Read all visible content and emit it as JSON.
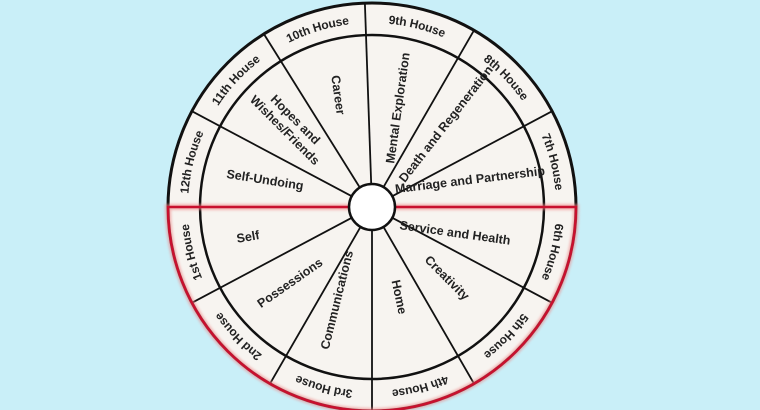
{
  "colors": {
    "background": "#c9eff8",
    "wheel_fill": "#f7f4f0",
    "line": "#111111",
    "highlight": "#c8102e"
  },
  "houses": [
    {
      "house": "1st House",
      "meaning": "Self"
    },
    {
      "house": "2nd House",
      "meaning": "Possessions"
    },
    {
      "house": "3rd House",
      "meaning": "Communications"
    },
    {
      "house": "4th House",
      "meaning": "Home"
    },
    {
      "house": "5th House",
      "meaning": "Creativity"
    },
    {
      "house": "6th House",
      "meaning": "Service and Health"
    },
    {
      "house": "7th House",
      "meaning": "Marriage and Partnership"
    },
    {
      "house": "8th House",
      "meaning": "Death and Regeneration"
    },
    {
      "house": "9th House",
      "meaning": "Mental Exploration"
    },
    {
      "house": "10th House",
      "meaning": "Career"
    },
    {
      "house": "11th House",
      "meaning": "Hopes and|Wishes/Friends"
    },
    {
      "house": "12th House",
      "meaning": "Self-Undoing"
    }
  ]
}
